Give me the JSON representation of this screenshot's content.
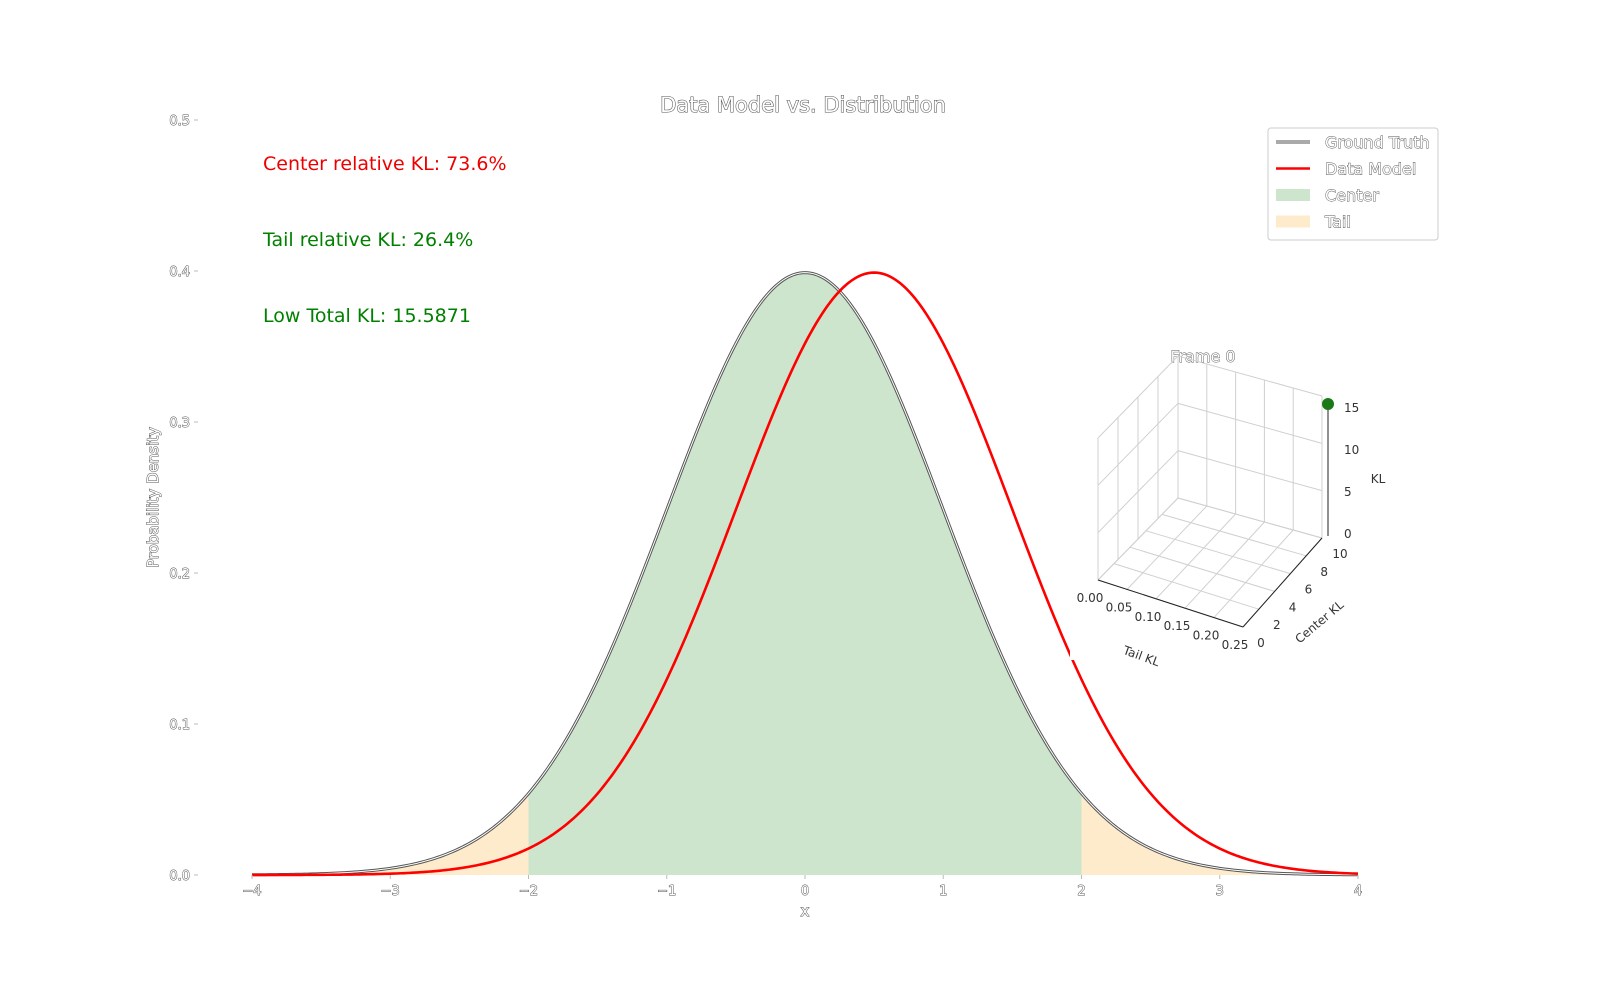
{
  "chart_data": {
    "type": "line",
    "title": "Data Model vs. Distribution",
    "xlabel": "x",
    "ylabel": "Probability Density",
    "xlim": [
      -4,
      4
    ],
    "ylim": [
      0,
      0.5
    ],
    "xticks": [
      -4,
      -3,
      -2,
      -1,
      0,
      1,
      2,
      3,
      4
    ],
    "xtick_labels": [
      "−4",
      "−3",
      "−2",
      "−1",
      "0",
      "1",
      "2",
      "3",
      "4"
    ],
    "yticks": [
      0.0,
      0.1,
      0.2,
      0.3,
      0.4,
      0.5
    ],
    "ytick_labels": [
      "0.0",
      "0.1",
      "0.2",
      "0.3",
      "0.4",
      "0.5"
    ],
    "series": [
      {
        "name": "Ground Truth",
        "distribution": "normal",
        "mean": 0.0,
        "std": 1.0,
        "color": "#000000"
      },
      {
        "name": "Data Model",
        "distribution": "normal",
        "mean": 0.5,
        "std": 1.0,
        "color": "#ff0000"
      }
    ],
    "regions": [
      {
        "name": "Center",
        "x_range": [
          -2,
          2
        ],
        "color": "#cde4cd"
      },
      {
        "name": "Tail",
        "x_ranges": [
          [
            -4,
            -2
          ],
          [
            2,
            4
          ]
        ],
        "color": "#fdebcb"
      }
    ],
    "legend": {
      "position": "top-right",
      "entries": [
        "Ground Truth",
        "Data Model",
        "Center",
        "Tail"
      ]
    },
    "annotations": [
      {
        "text": "Center relative KL: 73.6%",
        "color": "#ee0000"
      },
      {
        "text": "Tail relative KL: 26.4%",
        "color": "#008000"
      },
      {
        "text": "Low Total KL: 15.5871",
        "color": "#008000"
      }
    ],
    "inset_3d": {
      "title": "Frame 0",
      "xlabel": "Tail KL",
      "ylabel": "Center KL",
      "zlabel": "KL",
      "xticks": [
        "0.00",
        "0.05",
        "0.10",
        "0.15",
        "0.20",
        "0.25"
      ],
      "yticks": [
        "0",
        "2",
        "4",
        "6",
        "8",
        "10"
      ],
      "zticks": [
        "0",
        "5",
        "10",
        "15"
      ],
      "point": {
        "tail_kl": 0.25,
        "center_kl": 10,
        "kl": 15.5871,
        "color": "#1a7a1a"
      }
    }
  }
}
